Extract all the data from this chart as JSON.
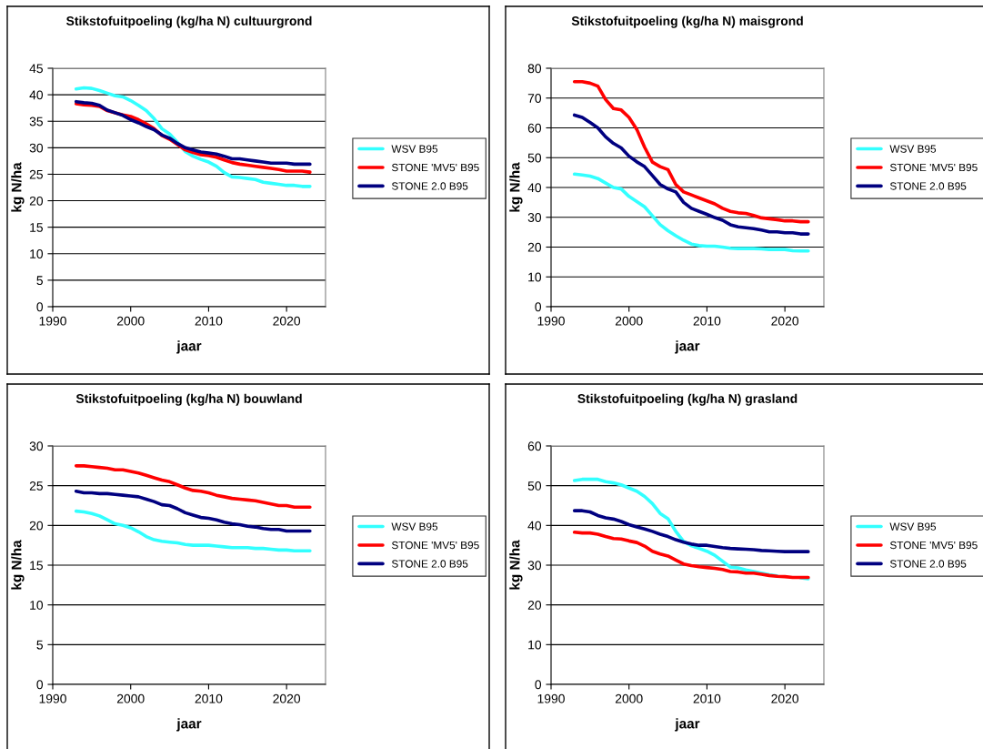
{
  "chart_data": [
    {
      "type": "line",
      "title": "Stikstofuitpoeling (kg/ha N) cultuurgrond",
      "xlabel": "jaar",
      "ylabel": "kg N/ha",
      "xlim": [
        1990,
        2025
      ],
      "xticks": [
        1990,
        2000,
        2010,
        2020
      ],
      "ylim": [
        0,
        45
      ],
      "yticks": [
        0,
        5,
        10,
        15,
        20,
        25,
        30,
        35,
        40,
        45
      ],
      "grid": "y",
      "legend": "right",
      "marker": "none",
      "line_style": "solid",
      "x": [
        1993,
        1994,
        1995,
        1996,
        1997,
        1998,
        1999,
        2000,
        2001,
        2002,
        2003,
        2004,
        2005,
        2006,
        2007,
        2008,
        2009,
        2010,
        2011,
        2012,
        2013,
        2014,
        2015,
        2016,
        2017,
        2018,
        2019,
        2020,
        2021,
        2022,
        2023
      ],
      "series": [
        {
          "name": "WSV B95",
          "color": "#33ffff",
          "values": [
            41.1,
            41.3,
            41.2,
            40.8,
            40.3,
            39.8,
            39.6,
            38.9,
            38.0,
            37.0,
            35.5,
            33.6,
            32.6,
            31.0,
            29.3,
            28.4,
            27.8,
            27.3,
            26.5,
            25.3,
            24.5,
            24.4,
            24.2,
            24.0,
            23.5,
            23.3,
            23.1,
            22.9,
            22.9,
            22.7,
            22.7
          ]
        },
        {
          "name": "STONE 'MV5' B95",
          "color": "#ff0000",
          "values": [
            38.3,
            38.1,
            38.0,
            37.8,
            37.0,
            36.6,
            36.2,
            35.9,
            35.3,
            34.5,
            33.6,
            32.3,
            31.6,
            30.6,
            29.6,
            29.1,
            28.7,
            28.5,
            28.2,
            27.7,
            27.2,
            26.9,
            26.7,
            26.5,
            26.3,
            26.1,
            25.9,
            25.6,
            25.6,
            25.6,
            25.4
          ]
        },
        {
          "name": "STONE 2.0 B95",
          "color": "#000080",
          "values": [
            38.7,
            38.5,
            38.4,
            38.0,
            37.1,
            36.6,
            36.1,
            35.3,
            34.7,
            34.0,
            33.4,
            32.4,
            31.8,
            30.8,
            30.0,
            29.6,
            29.2,
            29.0,
            28.8,
            28.4,
            27.9,
            27.9,
            27.7,
            27.5,
            27.3,
            27.1,
            27.1,
            27.1,
            26.9,
            26.9,
            26.9
          ]
        }
      ]
    },
    {
      "type": "line",
      "title": "Stikstofuitpoeling (kg/ha N) maisgrond",
      "xlabel": "jaar",
      "ylabel": "kg N/ha",
      "xlim": [
        1990,
        2025
      ],
      "xticks": [
        1990,
        2000,
        2010,
        2020
      ],
      "ylim": [
        0,
        80
      ],
      "yticks": [
        0,
        10,
        20,
        30,
        40,
        50,
        60,
        70,
        80
      ],
      "grid": "y",
      "legend": "right",
      "marker": "none",
      "line_style": "solid",
      "x": [
        1993,
        1994,
        1995,
        1996,
        1997,
        1998,
        1999,
        2000,
        2001,
        2002,
        2003,
        2004,
        2005,
        2006,
        2007,
        2008,
        2009,
        2010,
        2011,
        2012,
        2013,
        2014,
        2015,
        2016,
        2017,
        2018,
        2019,
        2020,
        2021,
        2022,
        2023
      ],
      "series": [
        {
          "name": "WSV B95",
          "color": "#33ffff",
          "values": [
            44.5,
            44.2,
            43.8,
            43.0,
            41.5,
            40.0,
            39.5,
            37.0,
            35.3,
            33.5,
            30.5,
            27.5,
            25.5,
            23.8,
            22.3,
            21.0,
            20.5,
            20.3,
            20.3,
            20.0,
            19.6,
            19.5,
            19.5,
            19.5,
            19.4,
            19.2,
            19.2,
            19.2,
            18.8,
            18.7,
            18.7
          ]
        },
        {
          "name": "STONE 'MV5' B95",
          "color": "#ff0000",
          "values": [
            75.5,
            75.5,
            75.0,
            74.0,
            69.5,
            66.5,
            66.0,
            63.5,
            59.5,
            53.5,
            48.5,
            47.0,
            46.0,
            41.0,
            38.5,
            37.5,
            36.5,
            35.5,
            34.5,
            33.0,
            32.0,
            31.5,
            31.3,
            30.6,
            29.8,
            29.5,
            29.2,
            28.8,
            28.8,
            28.5,
            28.5
          ]
        },
        {
          "name": "STONE 2.0 B95",
          "color": "#000080",
          "values": [
            64.3,
            63.5,
            61.8,
            60.0,
            57.0,
            54.8,
            53.3,
            50.5,
            48.6,
            47.0,
            44.0,
            41.0,
            39.5,
            38.5,
            35.0,
            33.0,
            32.0,
            31.0,
            29.9,
            29.0,
            27.5,
            26.8,
            26.5,
            26.2,
            25.7,
            25.1,
            25.1,
            24.8,
            24.8,
            24.4,
            24.4
          ]
        }
      ]
    },
    {
      "type": "line",
      "title": "Stikstofuitpoeling (kg/ha N) bouwland",
      "xlabel": "jaar",
      "ylabel": "kg N/ha",
      "xlim": [
        1990,
        2025
      ],
      "xticks": [
        1990,
        2000,
        2010,
        2020
      ],
      "ylim": [
        0,
        30
      ],
      "yticks": [
        0,
        5,
        10,
        15,
        20,
        25,
        30
      ],
      "grid": "y",
      "legend": "right",
      "marker": "none",
      "line_style": "solid",
      "x": [
        1993,
        1994,
        1995,
        1996,
        1997,
        1998,
        1999,
        2000,
        2001,
        2002,
        2003,
        2004,
        2005,
        2006,
        2007,
        2008,
        2009,
        2010,
        2011,
        2012,
        2013,
        2014,
        2015,
        2016,
        2017,
        2018,
        2019,
        2020,
        2021,
        2022,
        2023
      ],
      "series": [
        {
          "name": "WSV B95",
          "color": "#33ffff",
          "values": [
            21.8,
            21.7,
            21.5,
            21.2,
            20.7,
            20.2,
            20.0,
            19.7,
            19.2,
            18.6,
            18.2,
            18.0,
            17.9,
            17.8,
            17.6,
            17.5,
            17.5,
            17.5,
            17.4,
            17.3,
            17.2,
            17.2,
            17.2,
            17.1,
            17.1,
            17.0,
            16.9,
            16.9,
            16.8,
            16.8,
            16.8
          ]
        },
        {
          "name": "STONE 'MV5' B95",
          "color": "#ff0000",
          "values": [
            27.5,
            27.5,
            27.4,
            27.3,
            27.2,
            27.0,
            27.0,
            26.8,
            26.6,
            26.3,
            26.0,
            25.7,
            25.5,
            25.1,
            24.7,
            24.4,
            24.3,
            24.1,
            23.8,
            23.6,
            23.4,
            23.3,
            23.2,
            23.1,
            22.9,
            22.7,
            22.5,
            22.5,
            22.3,
            22.3,
            22.3
          ]
        },
        {
          "name": "STONE 2.0 B95",
          "color": "#000080",
          "values": [
            24.3,
            24.1,
            24.1,
            24.0,
            24.0,
            23.9,
            23.8,
            23.7,
            23.6,
            23.3,
            23.0,
            22.6,
            22.5,
            22.1,
            21.6,
            21.3,
            21.0,
            20.9,
            20.7,
            20.4,
            20.2,
            20.1,
            19.9,
            19.8,
            19.6,
            19.5,
            19.5,
            19.3,
            19.3,
            19.3,
            19.3
          ]
        }
      ]
    },
    {
      "type": "line",
      "title": "Stikstofuitpoeling (kg/ha N) grasland",
      "xlabel": "jaar",
      "ylabel": "kg N/ha",
      "xlim": [
        1990,
        2025
      ],
      "xticks": [
        1990,
        2000,
        2010,
        2020
      ],
      "ylim": [
        0,
        60
      ],
      "yticks": [
        0,
        10,
        20,
        30,
        40,
        50,
        60
      ],
      "grid": "y",
      "legend": "right",
      "marker": "none",
      "line_style": "solid",
      "x": [
        1993,
        1994,
        1995,
        1996,
        1997,
        1998,
        1999,
        2000,
        2001,
        2002,
        2003,
        2004,
        2005,
        2006,
        2007,
        2008,
        2009,
        2010,
        2011,
        2012,
        2013,
        2014,
        2015,
        2016,
        2017,
        2018,
        2019,
        2020,
        2021,
        2022,
        2023
      ],
      "series": [
        {
          "name": "WSV B95",
          "color": "#33ffff",
          "values": [
            51.3,
            51.6,
            51.6,
            51.6,
            51.0,
            50.7,
            50.2,
            49.4,
            48.6,
            47.3,
            45.5,
            43.0,
            41.7,
            38.5,
            36.0,
            34.9,
            34.2,
            33.5,
            32.5,
            31.0,
            29.5,
            29.3,
            28.8,
            28.4,
            28.0,
            27.6,
            27.3,
            null,
            null,
            26.8,
            26.6
          ]
        },
        {
          "name": "STONE 'MV5' B95",
          "color": "#ff0000",
          "values": [
            38.3,
            38.1,
            38.1,
            37.8,
            37.2,
            36.7,
            36.6,
            36.1,
            35.7,
            34.8,
            33.5,
            32.8,
            32.3,
            31.3,
            30.3,
            29.9,
            29.6,
            29.4,
            29.2,
            28.9,
            28.4,
            28.3,
            28.0,
            28.0,
            27.7,
            27.4,
            27.2,
            27.1,
            26.9,
            26.9,
            26.9
          ]
        },
        {
          "name": "STONE 2.0 B95",
          "color": "#000080",
          "values": [
            43.7,
            43.7,
            43.4,
            42.5,
            41.9,
            41.6,
            41.0,
            40.2,
            39.6,
            39.1,
            38.5,
            37.8,
            37.2,
            36.4,
            35.8,
            35.3,
            35.0,
            35.0,
            34.7,
            34.4,
            34.2,
            34.1,
            34.0,
            33.9,
            33.7,
            33.6,
            33.5,
            33.4,
            33.4,
            33.4,
            33.4
          ]
        }
      ]
    }
  ]
}
